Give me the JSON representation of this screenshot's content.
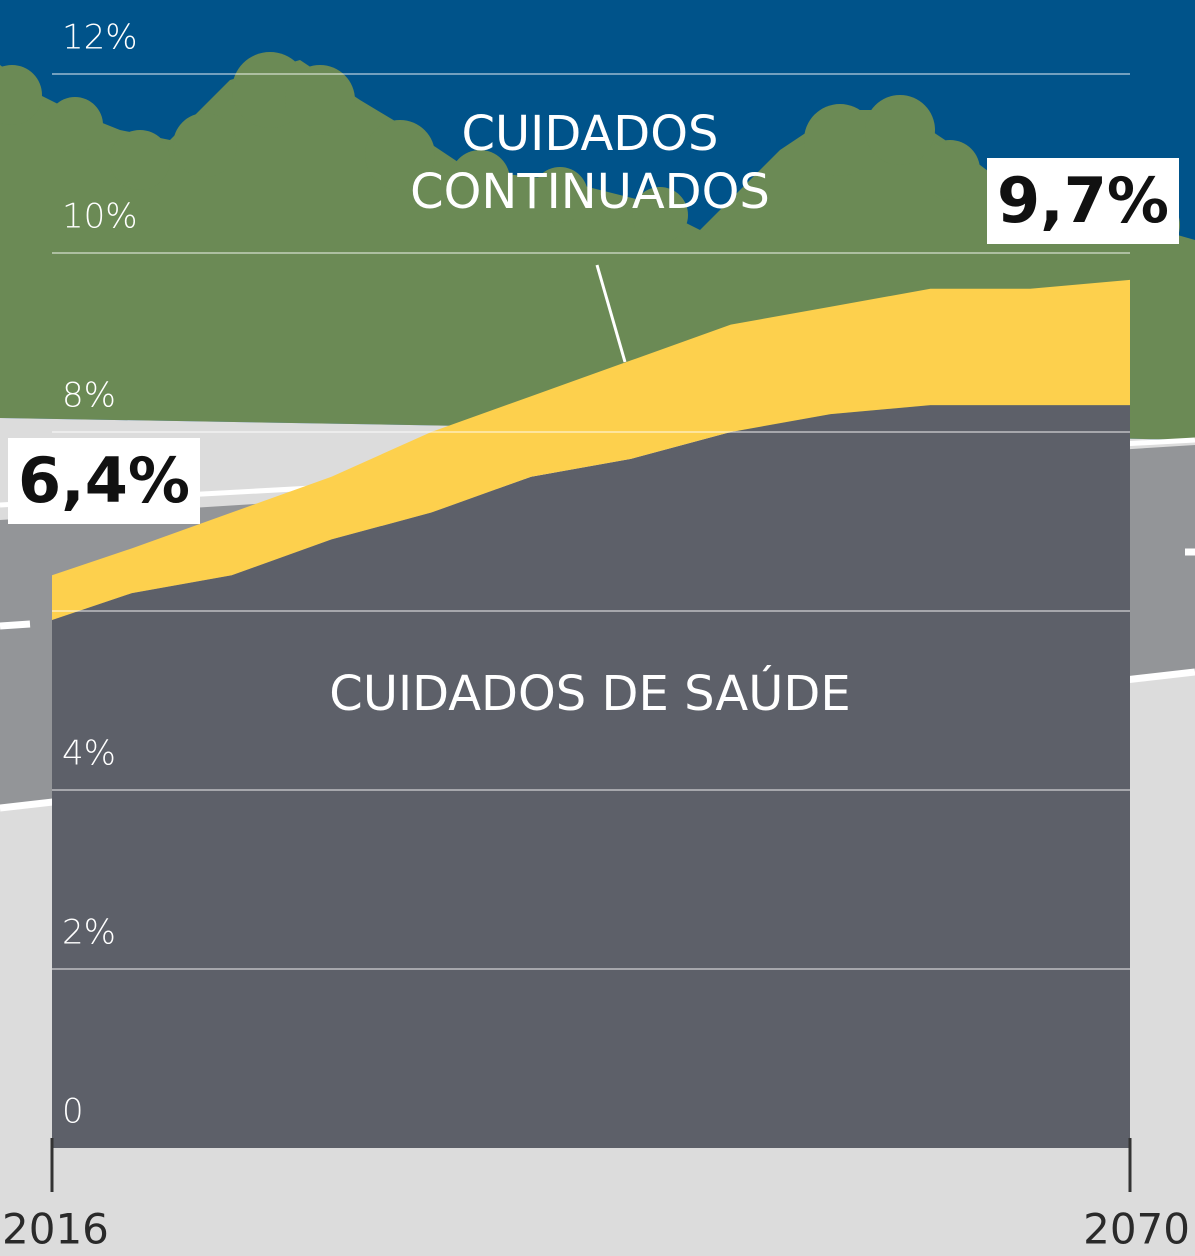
{
  "chart_data": {
    "type": "stacked-area",
    "x": [
      2016,
      2020,
      2025,
      2030,
      2035,
      2040,
      2045,
      2050,
      2055,
      2060,
      2065,
      2070
    ],
    "series": [
      {
        "name": "CUIDADOS DE SAÚDE",
        "color": "#5d6069",
        "values": [
          5.9,
          6.2,
          6.4,
          6.8,
          7.1,
          7.5,
          7.7,
          8.0,
          8.2,
          8.3,
          8.3,
          8.3
        ]
      },
      {
        "name": "CUIDADOS CONTINUADOS",
        "color": "#fdd04d",
        "values": [
          0.5,
          0.5,
          0.7,
          0.7,
          0.9,
          0.9,
          1.1,
          1.2,
          1.2,
          1.3,
          1.3,
          1.4
        ]
      }
    ],
    "xlim": [
      2016,
      2070
    ],
    "xticks": [
      2016,
      2070
    ],
    "ylim": [
      0,
      12.4
    ],
    "yticks": [
      0,
      {
        "value": 2,
        "label": "2%"
      },
      {
        "value": 4,
        "label": "4%"
      },
      {
        "value": 6,
        "label": null
      },
      {
        "value": 8,
        "label": "8%"
      },
      {
        "value": 10,
        "label": "10%"
      },
      {
        "value": 12,
        "label": "12%"
      }
    ],
    "grid": true,
    "annotations": [
      {
        "text": "6,4%"
      },
      {
        "text": "9,7%"
      }
    ]
  }
}
